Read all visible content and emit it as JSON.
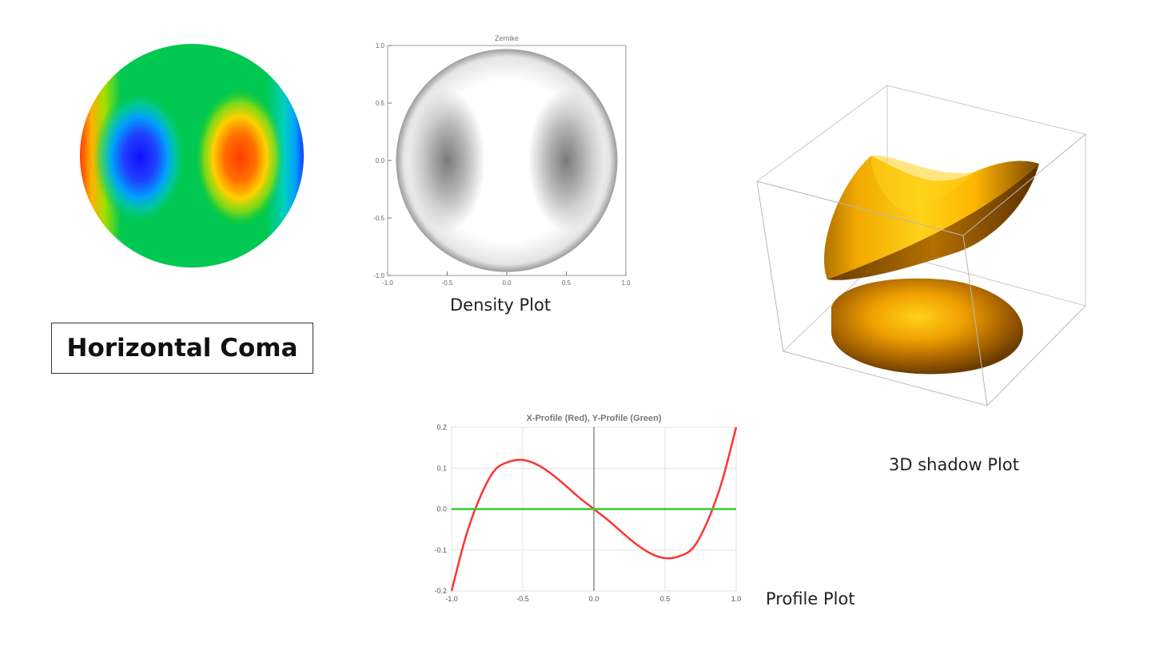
{
  "page_title": "Horizontal Coma",
  "captions": {
    "density": "Density Plot",
    "shadow3d": "3D shadow Plot",
    "profile": "Profile Plot"
  },
  "colormap_panel": {
    "colorscale": [
      "#1a1aff",
      "#00a0ff",
      "#00c850",
      "#22c922",
      "#c8e000",
      "#ff9000",
      "#ff3b00"
    ]
  },
  "chart_data": [
    {
      "type": "heatmap",
      "title": "Zernike",
      "x_ticks": [
        "-1.0",
        "-0.5",
        "0.0",
        "0.5",
        "1.0"
      ],
      "y_ticks": [
        "1.0",
        "0.5",
        "0.0",
        "-0.5",
        "-1.0"
      ],
      "xlim": [
        -1,
        1
      ],
      "ylim": [
        -1,
        1
      ],
      "colors": {
        "low": "#7a7a7a",
        "high": "#ffffff"
      }
    },
    {
      "type": "line",
      "title": "X-Profile (Red), Y-Profile (Green)",
      "x_ticks": [
        "-1.0",
        "-0.5",
        "0.0",
        "0.5",
        "1.0"
      ],
      "y_ticks": [
        "0.2",
        "0.1",
        "0.0",
        "-0.1",
        "-0.2"
      ],
      "xlim": [
        -1,
        1
      ],
      "ylim": [
        -0.2,
        0.2
      ],
      "series": [
        {
          "color": "#ff3333",
          "x": [
            -1.0,
            -0.9,
            -0.8,
            -0.7,
            -0.6,
            -0.5,
            -0.4,
            -0.3,
            -0.2,
            -0.1,
            0.0,
            0.1,
            0.2,
            0.3,
            0.4,
            0.5,
            0.6,
            0.7,
            0.8,
            0.9,
            1.0
          ],
          "y": [
            -0.2,
            -0.0672,
            0.0288,
            0.0936,
            0.1152,
            0.12,
            0.1088,
            0.0864,
            0.0576,
            0.0272,
            0.0,
            -0.0272,
            -0.0576,
            -0.0864,
            -0.1088,
            -0.12,
            -0.1152,
            -0.0936,
            -0.0288,
            0.0672,
            0.2
          ]
        },
        {
          "color": "#33cc33",
          "x": [
            -1.0,
            1.0
          ],
          "y": [
            0.0,
            0.0
          ]
        }
      ]
    }
  ]
}
